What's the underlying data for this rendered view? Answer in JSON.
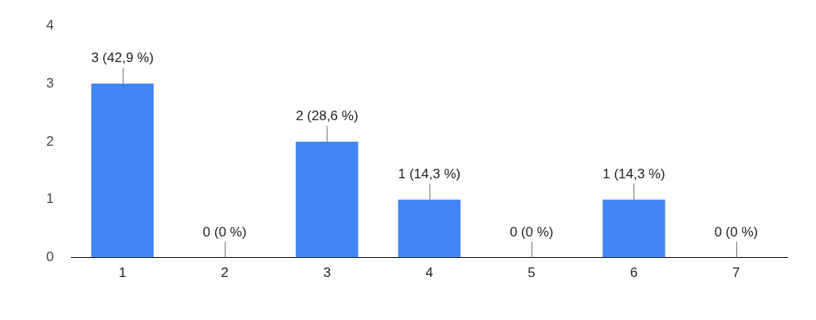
{
  "chart_data": {
    "type": "bar",
    "categories": [
      "1",
      "2",
      "3",
      "4",
      "5",
      "6",
      "7"
    ],
    "values": [
      3,
      0,
      2,
      1,
      0,
      1,
      0
    ],
    "value_labels": [
      "3 (42,9 %)",
      "0 (0 %)",
      "2 (28,6 %)",
      "1 (14,3 %)",
      "0 (0 %)",
      "1 (14,3 %)",
      "0 (0 %)"
    ],
    "color": "#4285f4",
    "ylim": [
      0,
      4
    ],
    "yticks": [
      0,
      1,
      2,
      3,
      4
    ],
    "grid": false,
    "data_labels": true
  }
}
